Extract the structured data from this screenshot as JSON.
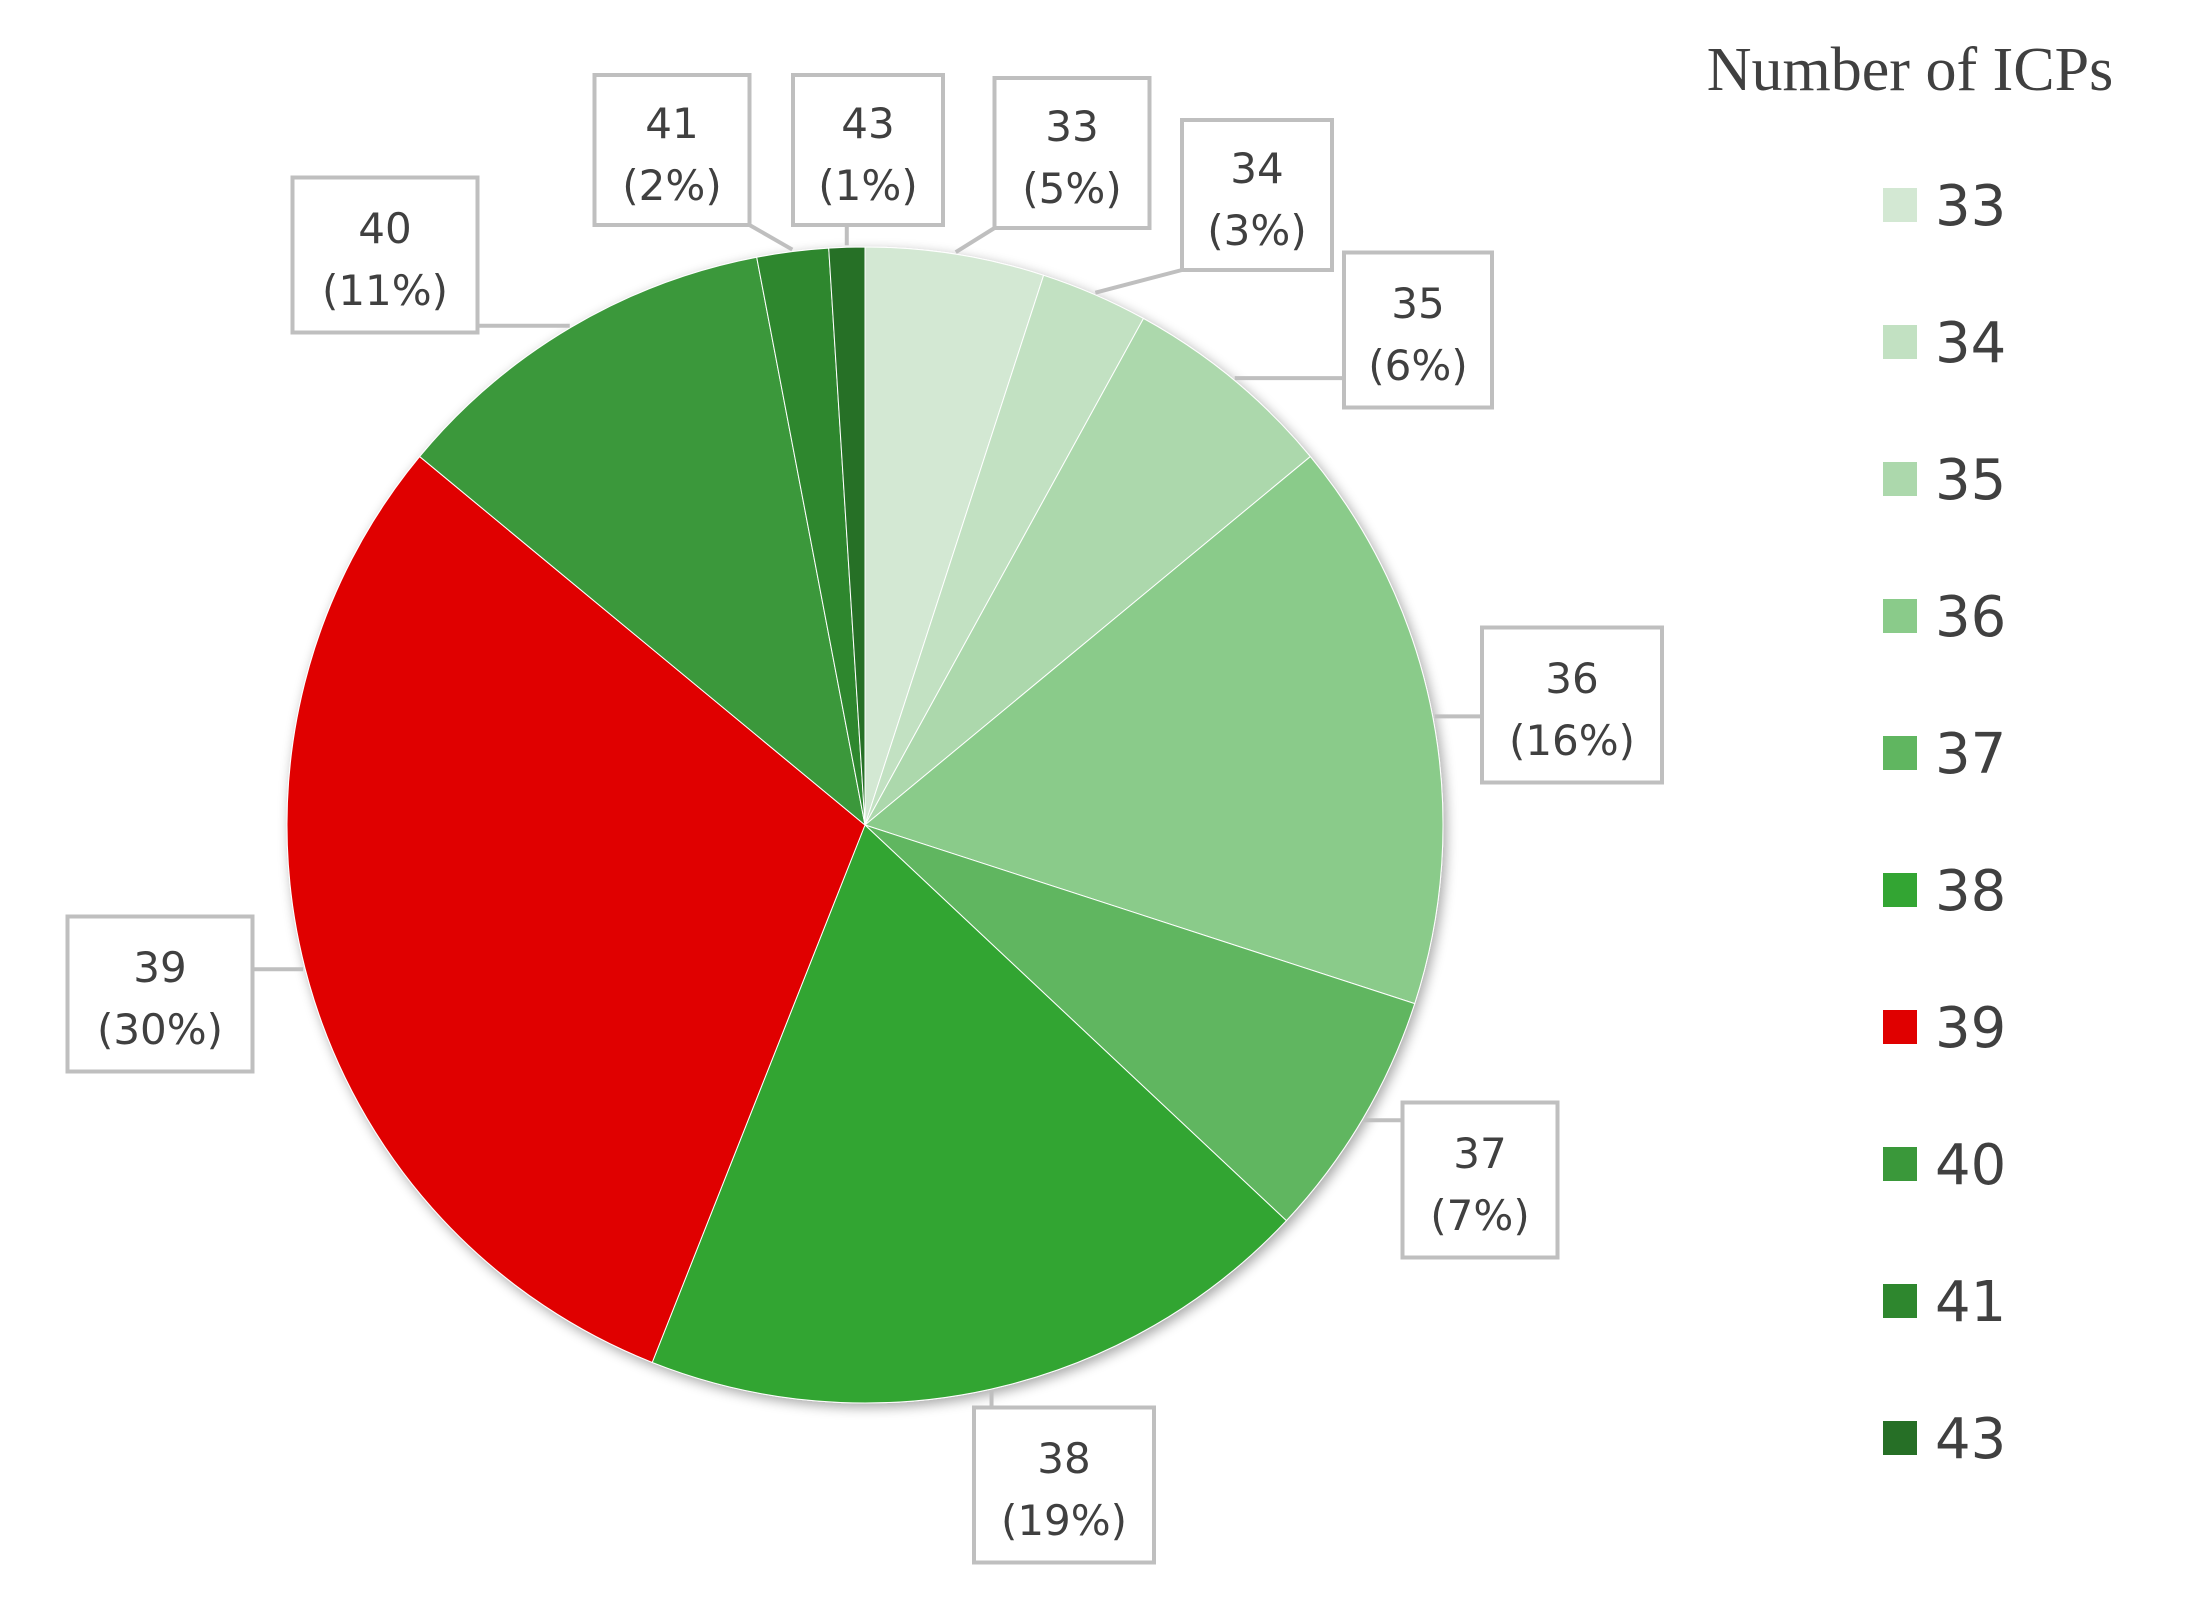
{
  "chart_data": {
    "type": "pie",
    "legend_title": "Number of ICPs",
    "legend_position": "right",
    "slices": [
      {
        "label": "33",
        "value": 5,
        "pct_label": "(5%)",
        "color": "#d3e8d3"
      },
      {
        "label": "34",
        "value": 3,
        "pct_label": "(3%)",
        "color": "#c2e1c2"
      },
      {
        "label": "35",
        "value": 6,
        "pct_label": "(6%)",
        "color": "#acd8ac"
      },
      {
        "label": "36",
        "value": 16,
        "pct_label": "(16%)",
        "color": "#8acb8a"
      },
      {
        "label": "37",
        "value": 7,
        "pct_label": "(7%)",
        "color": "#60b660"
      },
      {
        "label": "38",
        "value": 19,
        "pct_label": "(19%)",
        "color": "#33a533"
      },
      {
        "label": "39",
        "value": 30,
        "pct_label": "(30%)",
        "color": "#e00000"
      },
      {
        "label": "40",
        "value": 11,
        "pct_label": "(11%)",
        "color": "#3a983a"
      },
      {
        "label": "41",
        "value": 2,
        "pct_label": "(2%)",
        "color": "#2e872e"
      },
      {
        "label": "43",
        "value": 1,
        "pct_label": "(1%)",
        "color": "#266f26"
      }
    ]
  }
}
